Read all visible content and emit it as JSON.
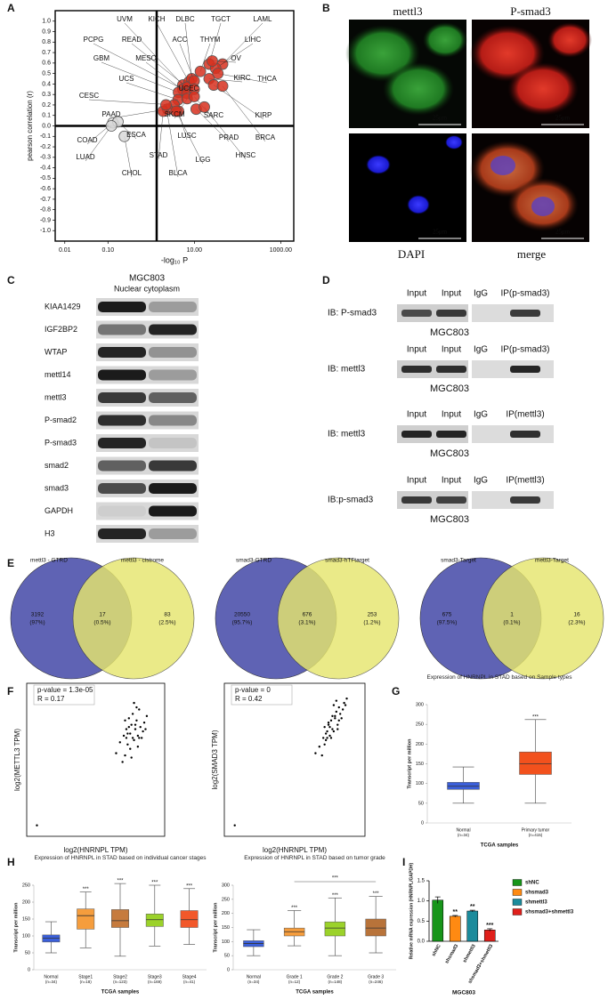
{
  "panel_labels": [
    "A",
    "B",
    "C",
    "D",
    "E",
    "F",
    "G",
    "H",
    "I"
  ],
  "panel_b": {
    "channels": [
      "mettl3",
      "P-smad3",
      "DAPI",
      "merge"
    ],
    "scale_bar": "25μm"
  },
  "panel_c": {
    "cell_line": "MGC803",
    "fractions": "Nuclear cytoplasm",
    "proteins": [
      "KIAA1429",
      "IGF2BP2",
      "WTAP",
      "mettl14",
      "mettl3",
      "P-smad2",
      "P-smad3",
      "smad2",
      "smad3",
      "GAPDH",
      "H3"
    ]
  },
  "panel_d": {
    "blots": [
      {
        "ib": "IB: P-smad3",
        "lanes": [
          "Input",
          "Input",
          "IgG",
          "IP(p-smad3)"
        ],
        "cell_line": "MGC803"
      },
      {
        "ib": "IB: mettl3",
        "lanes": [
          "Input",
          "Input",
          "IgG",
          "IP(p-smad3)"
        ],
        "cell_line": "MGC803"
      },
      {
        "ib": "IB: mettl3",
        "lanes": [
          "Input",
          "Input",
          "IgG",
          "IP(mettl3)"
        ],
        "cell_line": "MGC803"
      },
      {
        "ib": "IB:p-smad3",
        "lanes": [
          "Input",
          "Input",
          "IgG",
          "IP(mettl3)"
        ],
        "cell_line": "MGC803"
      }
    ]
  },
  "panel_e": {
    "venns": [
      {
        "sets": [
          "mettl3 - GTRD",
          "mettl3 - cistrome"
        ],
        "regions": [
          [
            "3192",
            "(97%)"
          ],
          [
            "17",
            "(0.5%)"
          ],
          [
            "83",
            "(2.5%)"
          ]
        ]
      },
      {
        "sets": [
          "smad3-GTRD",
          "smad3-hTFtarget"
        ],
        "regions": [
          [
            "20550",
            "(95.7%)"
          ],
          [
            "676",
            "(3.1%)"
          ],
          [
            "253",
            "(1.2%)"
          ]
        ]
      },
      {
        "sets": [
          "smad3-Target",
          "mettl3-Target"
        ],
        "regions": [
          [
            "675",
            "(97.5%)"
          ],
          [
            "1",
            "(0.1%)"
          ],
          [
            "16",
            "(2.3%)"
          ]
        ]
      }
    ]
  },
  "chart_data": [
    {
      "type": "scatter",
      "xlabel": "-log₁₀ P",
      "ylabel": "pearson correlation (r)",
      "log_x": true,
      "xlim": [
        0.006,
        2000
      ],
      "ylim": [
        -1.1,
        1.1
      ],
      "xticks": [
        {
          "value": 0.01,
          "label": "0.01"
        },
        {
          "value": 0.1,
          "label": "0.10"
        },
        {
          "value": 10,
          "label": "10.00"
        },
        {
          "value": 1000,
          "label": "1000.00"
        }
      ],
      "yticks": [
        {
          "value": 1,
          "label": "1.0"
        },
        {
          "value": 0.9,
          "label": "0.9"
        },
        {
          "value": 0.8,
          "label": "0.8"
        },
        {
          "value": 0.7,
          "label": "0.7"
        },
        {
          "value": 0.6,
          "label": "0.6"
        },
        {
          "value": 0.5,
          "label": "0.5"
        },
        {
          "value": 0.4,
          "label": "0.4"
        },
        {
          "value": 0.3,
          "label": "0.3"
        },
        {
          "value": 0.2,
          "label": "0.2"
        },
        {
          "value": 0.1,
          "label": "0.1"
        },
        {
          "value": 0,
          "label": "0.0"
        },
        {
          "value": -0.1,
          "label": "-0.1"
        },
        {
          "value": -0.2,
          "label": "-0.2"
        },
        {
          "value": -0.3,
          "label": "-0.3"
        },
        {
          "value": -0.4,
          "label": "-0.4"
        },
        {
          "value": -0.5,
          "label": "-0.5"
        },
        {
          "value": -0.6,
          "label": "-0.6"
        },
        {
          "value": -0.7,
          "label": "-0.7"
        },
        {
          "value": -0.8,
          "label": "-0.8"
        },
        {
          "value": -0.9,
          "label": "-0.9"
        },
        {
          "value": -1,
          "label": "-1.0"
        }
      ],
      "point_labels": [
        "UVM",
        "KICH",
        "DLBC",
        "TGCT",
        "LAML",
        "PCPG",
        "READ",
        "ACC",
        "THYM",
        "LIHC",
        "GBM",
        "MESO",
        "OV",
        "THCA",
        "UCS",
        "UCEC",
        "KIRC",
        "CESC",
        "PAAD",
        "SKCM",
        "SARC",
        "KIRP",
        "PRAD",
        "BRCA",
        "LUSC",
        "HNSC",
        "STAD",
        "LGG",
        "BLCA",
        "COAD",
        "ESCA",
        "LUAD",
        "CHOL"
      ],
      "x": [
        5.4,
        7.5,
        8.7,
        22,
        45,
        5.4,
        6.8,
        9.9,
        13.8,
        31,
        4.3,
        6.8,
        26,
        35,
        4.2,
        9.9,
        22,
        3.4,
        2.4,
        6.8,
        9.9,
        28,
        11,
        45,
        4.3,
        17,
        1.9,
        3.8,
        2.2,
        0.13,
        0.17,
        0.12,
        0.24
      ],
      "y": [
        0.39,
        0.42,
        0.45,
        0.59,
        0.59,
        0.35,
        0.37,
        0.43,
        0.52,
        0.55,
        0.32,
        0.31,
        0.62,
        0.5,
        0.25,
        0.35,
        0.45,
        0.2,
        0.16,
        0.26,
        0.28,
        0.39,
        0.16,
        0.38,
        0.14,
        0.18,
        0.14,
        0.14,
        0.2,
        0.03,
        0.04,
        0,
        -0.1
      ],
      "colors": [
        "#d7301f",
        "#d7301f",
        "#d7301f",
        "#d7301f",
        "#d7301f",
        "#d7301f",
        "#d7301f",
        "#d7301f",
        "#d7301f",
        "#d7301f",
        "#d7301f",
        "#d7301f",
        "#d7301f",
        "#d7301f",
        "#d7301f",
        "#d7301f",
        "#d7301f",
        "#d7301f",
        "#d7301f",
        "#d7301f",
        "#d7301f",
        "#d7301f",
        "#d7301f",
        "#d7301f",
        "#d7301f",
        "#d7301f",
        "#d7301f",
        "#d7301f",
        "#d7301f",
        "#d9d9d9",
        "#d9d9d9",
        "#d9d9d9",
        "#d9d9d9"
      ]
    },
    {
      "type": "scatter",
      "xlabel": "log2(HNRNPL TPM)",
      "ylabel": "log2(METTL3 TPM)",
      "annotations": [
        "p-value = 1.3e-05",
        "R = 0.17"
      ],
      "color": "#000000",
      "xlim": [
        -0.8,
        10
      ],
      "ylim": [
        -0.5,
        6.5
      ],
      "x": [
        0,
        6.2,
        6.5,
        6.8,
        6.9,
        7,
        7.1,
        7.2,
        7.3,
        7.3,
        7.4,
        7.5,
        7.5,
        7.6,
        7.7,
        7.8,
        7.9,
        8,
        8.1,
        8.2,
        8.4,
        8.6,
        6.7,
        7,
        7.2,
        7.6,
        7.9,
        8.3,
        6.9,
        7.4,
        7.8,
        8,
        7.1,
        7.7,
        8.5
      ],
      "y": [
        0,
        3.3,
        3.8,
        4.1,
        3.2,
        4.4,
        3.7,
        4.9,
        4.2,
        3.5,
        4.6,
        4,
        5.1,
        3.9,
        4.4,
        4.8,
        4.1,
        5.3,
        4.5,
        4,
        4.7,
        5,
        2.9,
        4,
        4.5,
        5.6,
        3.6,
        4.3,
        4.8,
        3.1,
        5.4,
        4,
        4.2,
        4.6,
        4.4
      ]
    },
    {
      "type": "scatter",
      "xlabel": "log2(HNRNPL TPM)",
      "ylabel": "log2(SMAD3 TPM)",
      "annotations": [
        "p-value = 0",
        "R = 0.42"
      ],
      "color": "#000000",
      "xlim": [
        -0.8,
        10
      ],
      "ylim": [
        -0.5,
        6.5
      ],
      "x": [
        0,
        6.2,
        6.5,
        6.8,
        6.9,
        7,
        7.1,
        7.2,
        7.3,
        7.3,
        7.4,
        7.5,
        7.5,
        7.6,
        7.7,
        7.8,
        7.9,
        8,
        8.1,
        8.2,
        8.4,
        8.6,
        6.7,
        7,
        7.2,
        7.6,
        7.9,
        8.3,
        6.9,
        7.4,
        7.8,
        8,
        7.1,
        7.7,
        8.5
      ],
      "y": [
        0,
        3.3,
        3.6,
        4,
        3.7,
        4.2,
        4,
        4.6,
        4.5,
        4.1,
        4.8,
        4.4,
        5,
        4.3,
        4.9,
        5.2,
        4.6,
        5.4,
        5.1,
        4.9,
        5.6,
        5.8,
        3.2,
        3.9,
        4.7,
        5.5,
        4.4,
        5.3,
        4.5,
        4,
        5.7,
        4.8,
        4.3,
        5,
        5.5
      ]
    },
    {
      "type": "box",
      "title": "Expression of HNRNPL in STAD based on Sample types",
      "ylabel": "Transcript per million",
      "xlabel": "TCGA samples",
      "categories": [
        "Normal",
        "Primary tumor"
      ],
      "sample_sizes": [
        "(n=34)",
        "(n=415)"
      ],
      "min": [
        50,
        50
      ],
      "q1": [
        85,
        123
      ],
      "median": [
        93,
        150
      ],
      "q3": [
        103,
        180
      ],
      "max": [
        142,
        262
      ],
      "colors": [
        "#3b5fd9",
        "#f2511d"
      ],
      "significance": [
        null,
        "***"
      ],
      "ylim": [
        0,
        300
      ],
      "yticks": [
        0,
        50,
        100,
        150,
        200,
        250,
        300
      ]
    },
    {
      "type": "box",
      "title": "Expression of HNRNPL in STAD based on individual cancer stages",
      "ylabel": "Transcript per million",
      "xlabel": "TCGA samples",
      "categories": [
        "Normal",
        "Stage1",
        "Stage2",
        "Stage3",
        "Stage4"
      ],
      "sample_sizes": [
        "(n=34)",
        "(n=18)",
        "(n=123)",
        "(n=169)",
        "(n=41)"
      ],
      "min": [
        50,
        65,
        40,
        70,
        75
      ],
      "q1": [
        82,
        120,
        125,
        128,
        125
      ],
      "median": [
        93,
        160,
        145,
        148,
        148
      ],
      "q3": [
        103,
        180,
        178,
        165,
        175
      ],
      "max": [
        142,
        230,
        255,
        250,
        240
      ],
      "colors": [
        "#3b5fd9",
        "#f59d3d",
        "#c67b3e",
        "#9bd22a",
        "#f2582a"
      ],
      "significance": [
        null,
        "***",
        "***",
        "***",
        "***"
      ],
      "ylim": [
        0,
        250
      ],
      "yticks": [
        0,
        50,
        100,
        150,
        200,
        250
      ]
    },
    {
      "type": "box",
      "title": "Expression of HNRNPL in STAD based on tumor grade",
      "ylabel": "Transcript per million",
      "xlabel": "TCGA samples",
      "categories": [
        "Normal",
        "Grade 1",
        "Grade 2",
        "Grade 3"
      ],
      "sample_sizes": [
        "(n=34)",
        "(n=12)",
        "(n=148)",
        "(n=246)"
      ],
      "min": [
        50,
        85,
        50,
        60
      ],
      "q1": [
        82,
        120,
        120,
        120
      ],
      "median": [
        93,
        135,
        148,
        148
      ],
      "q3": [
        103,
        148,
        170,
        180
      ],
      "max": [
        142,
        210,
        255,
        260
      ],
      "colors": [
        "#3b5fd9",
        "#f59d3d",
        "#9bd22a",
        "#b8733a"
      ],
      "significance": [
        null,
        "***",
        "***",
        "***"
      ],
      "bracket_label": "***",
      "ylim": [
        0,
        300
      ],
      "yticks": [
        0,
        50,
        100,
        150,
        200,
        250,
        300
      ]
    },
    {
      "type": "bar",
      "ylabel": "Relative mRNA expression (HNRNPL/GAPDH)",
      "xlabel": "MGC803",
      "legend": "right",
      "categories": [
        "shNC",
        "shsmad3",
        "shmettl3",
        "shsmad3+shmettl3"
      ],
      "values": [
        1.02,
        0.62,
        0.75,
        0.28
      ],
      "errors": [
        0.08,
        0.02,
        0.02,
        0.03
      ],
      "colors": [
        "#17951a",
        "#ff8a12",
        "#1b8b9c",
        "#e0201b"
      ],
      "significance": [
        null,
        "**",
        "**",
        "***"
      ],
      "ylim": [
        0,
        1.5
      ],
      "yticks": [
        {
          "value": 0,
          "label": "0.0"
        },
        {
          "value": 0.5,
          "label": "0.5"
        },
        {
          "value": 1,
          "label": "1.0"
        },
        {
          "value": 1.5,
          "label": "1.5"
        }
      ]
    }
  ]
}
